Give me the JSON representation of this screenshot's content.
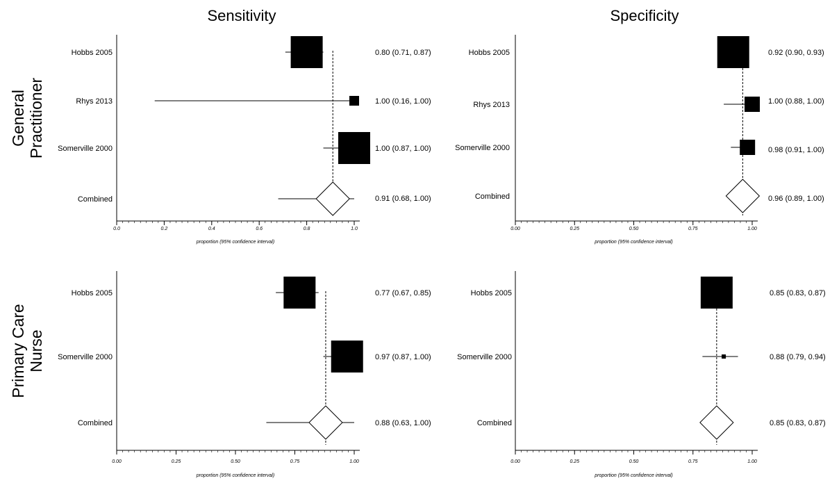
{
  "titles": {
    "sensitivity": "Sensitivity",
    "specificity": "Specificity",
    "general_practitioner_line1": "General",
    "general_practitioner_line2": "Practitioner",
    "primary_care_nurse_line1": "Primary Care",
    "primary_care_nurse_line2": "Nurse"
  },
  "chart_data": [
    {
      "type": "forest",
      "row": "General Practitioner",
      "column": "Sensitivity",
      "xlabel": "proportion (95% confidence interval)",
      "xlim": [
        0,
        1
      ],
      "xticks": [
        "0.0",
        "0.2",
        "0.4",
        "0.6",
        "0.8",
        "1.0"
      ],
      "pooled_line": 0.91,
      "studies": [
        {
          "label": "Hobbs 2005",
          "estimate": 0.8,
          "lower": 0.71,
          "upper": 0.87,
          "text": "0.80 (0.71, 0.87)",
          "weight": "large"
        },
        {
          "label": "Rhys 2013",
          "estimate": 1.0,
          "lower": 0.16,
          "upper": 1.0,
          "text": "1.00 (0.16, 1.00)",
          "weight": "small"
        },
        {
          "label": "Somerville 2000",
          "estimate": 1.0,
          "lower": 0.87,
          "upper": 1.0,
          "text": "1.00 (0.87, 1.00)",
          "weight": "large"
        }
      ],
      "combined": {
        "label": "Combined",
        "estimate": 0.91,
        "lower": 0.68,
        "upper": 1.0,
        "text": "0.91 (0.68, 1.00)"
      }
    },
    {
      "type": "forest",
      "row": "General Practitioner",
      "column": "Specificity",
      "xlabel": "proportion (95% confidence interval)",
      "xlim": [
        0,
        1
      ],
      "xticks": [
        "0.00",
        "0.25",
        "0.50",
        "0.75",
        "1.00"
      ],
      "pooled_line": 0.96,
      "studies": [
        {
          "label": "Hobbs 2005",
          "estimate": 0.92,
          "lower": 0.9,
          "upper": 0.93,
          "text": "0.92 (0.90, 0.93)",
          "weight": "large"
        },
        {
          "label": "Rhys 2013",
          "estimate": 1.0,
          "lower": 0.88,
          "upper": 1.0,
          "text": "1.00 (0.88, 1.00)",
          "weight": "medium"
        },
        {
          "label": "Somerville 2000",
          "estimate": 0.98,
          "lower": 0.91,
          "upper": 1.0,
          "text": "0.98 (0.91, 1.00)",
          "weight": "medium"
        }
      ],
      "combined": {
        "label": "Combined",
        "estimate": 0.96,
        "lower": 0.89,
        "upper": 1.0,
        "text": "0.96 (0.89, 1.00)"
      }
    },
    {
      "type": "forest",
      "row": "Primary Care Nurse",
      "column": "Sensitivity",
      "xlabel": "proportion (95% confidence interval)",
      "xlim": [
        0,
        1
      ],
      "xticks": [
        "0.00",
        "0.25",
        "0.50",
        "0.75",
        "1.00"
      ],
      "pooled_line": 0.88,
      "studies": [
        {
          "label": "Hobbs 2005",
          "estimate": 0.77,
          "lower": 0.67,
          "upper": 0.85,
          "text": "0.77 (0.67, 0.85)",
          "weight": "large"
        },
        {
          "label": "Somerville 2000",
          "estimate": 0.97,
          "lower": 0.87,
          "upper": 1.0,
          "text": "0.97 (0.87, 1.00)",
          "weight": "large"
        }
      ],
      "combined": {
        "label": "Combined",
        "estimate": 0.88,
        "lower": 0.63,
        "upper": 1.0,
        "text": "0.88 (0.63, 1.00)"
      }
    },
    {
      "type": "forest",
      "row": "Primary Care Nurse",
      "column": "Specificity",
      "xlabel": "proportion (95% confidence interval)",
      "xlim": [
        0,
        1
      ],
      "xticks": [
        "0.00",
        "0.25",
        "0.50",
        "0.75",
        "1.00"
      ],
      "pooled_line": 0.85,
      "studies": [
        {
          "label": "Hobbs 2005",
          "estimate": 0.85,
          "lower": 0.83,
          "upper": 0.87,
          "text": "0.85 (0.83, 0.87)",
          "weight": "large"
        },
        {
          "label": "Somerville 2000",
          "estimate": 0.88,
          "lower": 0.79,
          "upper": 0.94,
          "text": "0.88 (0.79, 0.94)",
          "weight": "tiny"
        }
      ],
      "combined": {
        "label": "Combined",
        "estimate": 0.85,
        "lower": 0.83,
        "upper": 0.87,
        "text": "0.85 (0.83, 0.87)"
      }
    }
  ]
}
